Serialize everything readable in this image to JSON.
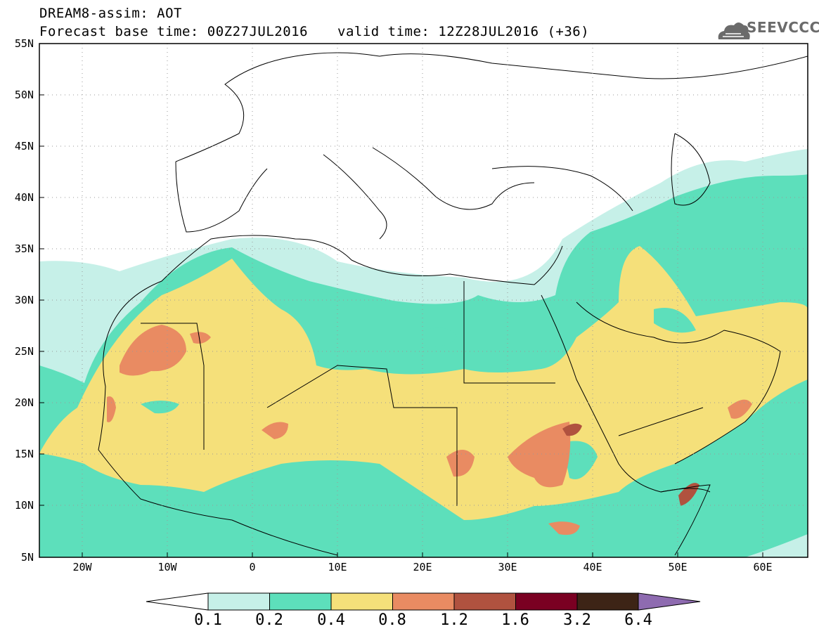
{
  "header": {
    "title": "DREAM8-assim: AOT",
    "base_time": "Forecast base time: 00Z27JUL2016",
    "valid_time": "valid time: 12Z28JUL2016 (+36)",
    "logo_text": "SEEVCCC"
  },
  "axes": {
    "lon_labels": [
      "20W",
      "10W",
      "0",
      "10E",
      "20E",
      "30E",
      "40E",
      "50E",
      "60E"
    ],
    "lat_labels": [
      "55N",
      "50N",
      "45N",
      "40N",
      "35N",
      "30N",
      "25N",
      "20N",
      "15N",
      "10N",
      "5N"
    ]
  },
  "colorbar": {
    "labels": [
      "0.1",
      "0.2",
      "0.4",
      "0.8",
      "1.2",
      "1.6",
      "3.2",
      "6.4"
    ],
    "colors": [
      "#ffffff",
      "#c6f0e8",
      "#5ddfbb",
      "#f5e07a",
      "#e98b62",
      "#b0523f",
      "#7a0022",
      "#3d2416",
      "#8e6bb0"
    ]
  }
}
